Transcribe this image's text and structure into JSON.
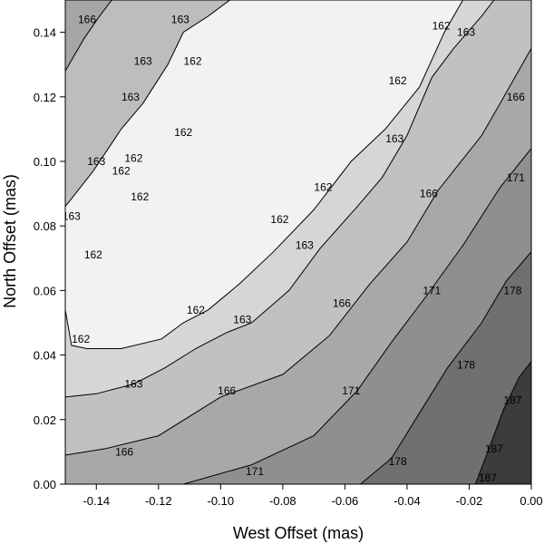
{
  "chart_data": {
    "type": "contour",
    "xlabel": "West Offset (mas)",
    "ylabel": "North Offset (mas)",
    "xlim": [
      -0.15,
      0.0
    ],
    "ylim": [
      0.0,
      0.15
    ],
    "xticks": [
      "-0.14",
      "-0.12",
      "-0.10",
      "-0.08",
      "-0.06",
      "-0.04",
      "-0.02",
      "0.00"
    ],
    "xtick_values": [
      -0.14,
      -0.12,
      -0.1,
      -0.08,
      -0.06,
      -0.04,
      -0.02,
      0.0
    ],
    "yticks": [
      "0.00",
      "0.02",
      "0.04",
      "0.06",
      "0.08",
      "0.10",
      "0.12",
      "0.14"
    ],
    "ytick_values": [
      0.0,
      0.02,
      0.04,
      0.06,
      0.08,
      0.1,
      0.12,
      0.14
    ],
    "levels": [
      162,
      163,
      166,
      171,
      178,
      187
    ],
    "fill_colors": [
      "#f2f2f2",
      "#d6d6d6",
      "#c1c1c1",
      "#a8a8a8",
      "#8f8f8f",
      "#707070",
      "#3c3c3c"
    ],
    "contours": [
      {
        "level": 162,
        "points": [
          [
            -0.15,
            0.054
          ],
          [
            -0.148,
            0.043
          ],
          [
            -0.143,
            0.042
          ],
          [
            -0.132,
            0.042
          ],
          [
            -0.119,
            0.045
          ],
          [
            -0.112,
            0.05
          ],
          [
            -0.104,
            0.054
          ],
          [
            -0.094,
            0.062
          ],
          [
            -0.083,
            0.072
          ],
          [
            -0.07,
            0.085
          ],
          [
            -0.058,
            0.1
          ],
          [
            -0.047,
            0.11
          ],
          [
            -0.036,
            0.123
          ],
          [
            -0.028,
            0.14
          ],
          [
            -0.022,
            0.15
          ]
        ]
      },
      {
        "level": 163,
        "points": [
          [
            -0.15,
            0.027
          ],
          [
            -0.14,
            0.028
          ],
          [
            -0.128,
            0.031
          ],
          [
            -0.118,
            0.036
          ],
          [
            -0.108,
            0.042
          ],
          [
            -0.098,
            0.047
          ],
          [
            -0.09,
            0.05
          ],
          [
            -0.078,
            0.06
          ],
          [
            -0.068,
            0.073
          ],
          [
            -0.056,
            0.086
          ],
          [
            -0.048,
            0.095
          ],
          [
            -0.04,
            0.108
          ],
          [
            -0.032,
            0.126
          ],
          [
            -0.025,
            0.135
          ],
          [
            -0.016,
            0.145
          ],
          [
            -0.012,
            0.15
          ]
        ]
      },
      {
        "level": 166,
        "points": [
          [
            -0.15,
            0.009
          ],
          [
            -0.137,
            0.011
          ],
          [
            -0.12,
            0.015
          ],
          [
            -0.1,
            0.027
          ],
          [
            -0.08,
            0.034
          ],
          [
            -0.065,
            0.046
          ],
          [
            -0.052,
            0.062
          ],
          [
            -0.04,
            0.075
          ],
          [
            -0.03,
            0.091
          ],
          [
            -0.016,
            0.108
          ],
          [
            -0.01,
            0.118
          ],
          [
            0.0,
            0.135
          ]
        ]
      },
      {
        "level": 171,
        "points": [
          [
            -0.112,
            0.0
          ],
          [
            -0.09,
            0.006
          ],
          [
            -0.07,
            0.015
          ],
          [
            -0.056,
            0.029
          ],
          [
            -0.045,
            0.044
          ],
          [
            -0.034,
            0.058
          ],
          [
            -0.022,
            0.074
          ],
          [
            -0.01,
            0.092
          ],
          [
            0.0,
            0.104
          ]
        ]
      },
      {
        "level": 178,
        "points": [
          [
            -0.055,
            0.0
          ],
          [
            -0.045,
            0.008
          ],
          [
            -0.036,
            0.022
          ],
          [
            -0.027,
            0.036
          ],
          [
            -0.016,
            0.05
          ],
          [
            -0.008,
            0.063
          ],
          [
            0.0,
            0.072
          ]
        ]
      },
      {
        "level": 187,
        "points": [
          [
            -0.018,
            0.0
          ],
          [
            -0.014,
            0.01
          ],
          [
            -0.009,
            0.023
          ],
          [
            -0.004,
            0.033
          ],
          [
            0.0,
            0.038
          ]
        ]
      }
    ],
    "upper_contours": [
      {
        "level": 163,
        "points": [
          [
            -0.15,
            0.086
          ],
          [
            -0.141,
            0.097
          ],
          [
            -0.132,
            0.11
          ],
          [
            -0.125,
            0.118
          ],
          [
            -0.117,
            0.13
          ],
          [
            -0.112,
            0.14
          ],
          [
            -0.104,
            0.145
          ],
          [
            -0.097,
            0.15
          ]
        ]
      },
      {
        "level": 166,
        "points": [
          [
            -0.15,
            0.128
          ],
          [
            -0.144,
            0.138
          ],
          [
            -0.139,
            0.145
          ],
          [
            -0.135,
            0.15
          ]
        ]
      }
    ],
    "upper_fill_color": "#bdbdbd",
    "upper_fill_color_2": "#a6a6a6",
    "contour_labels": [
      {
        "text": "166",
        "x": -0.143,
        "y": 0.144
      },
      {
        "text": "163",
        "x": -0.113,
        "y": 0.144
      },
      {
        "text": "163",
        "x": -0.125,
        "y": 0.131
      },
      {
        "text": "162",
        "x": -0.109,
        "y": 0.131
      },
      {
        "text": "163",
        "x": -0.129,
        "y": 0.12
      },
      {
        "text": "162",
        "x": -0.112,
        "y": 0.109
      },
      {
        "text": "163",
        "x": -0.14,
        "y": 0.1
      },
      {
        "text": "162",
        "x": -0.128,
        "y": 0.101
      },
      {
        "text": "162",
        "x": -0.132,
        "y": 0.097
      },
      {
        "text": "162",
        "x": -0.126,
        "y": 0.089
      },
      {
        "text": "163",
        "x": -0.148,
        "y": 0.083
      },
      {
        "text": "162",
        "x": -0.141,
        "y": 0.071
      },
      {
        "text": "162",
        "x": -0.081,
        "y": 0.082
      },
      {
        "text": "162",
        "x": -0.067,
        "y": 0.092
      },
      {
        "text": "162",
        "x": -0.043,
        "y": 0.125
      },
      {
        "text": "162",
        "x": -0.029,
        "y": 0.142
      },
      {
        "text": "163",
        "x": -0.021,
        "y": 0.14
      },
      {
        "text": "163",
        "x": -0.044,
        "y": 0.107
      },
      {
        "text": "163",
        "x": -0.073,
        "y": 0.074
      },
      {
        "text": "166",
        "x": -0.005,
        "y": 0.12
      },
      {
        "text": "166",
        "x": -0.033,
        "y": 0.09
      },
      {
        "text": "171",
        "x": -0.005,
        "y": 0.095
      },
      {
        "text": "166",
        "x": -0.061,
        "y": 0.056
      },
      {
        "text": "171",
        "x": -0.032,
        "y": 0.06
      },
      {
        "text": "178",
        "x": -0.006,
        "y": 0.06
      },
      {
        "text": "162",
        "x": -0.108,
        "y": 0.054
      },
      {
        "text": "163",
        "x": -0.093,
        "y": 0.051
      },
      {
        "text": "162",
        "x": -0.145,
        "y": 0.045
      },
      {
        "text": "163",
        "x": -0.128,
        "y": 0.031
      },
      {
        "text": "166",
        "x": -0.098,
        "y": 0.029
      },
      {
        "text": "171",
        "x": -0.058,
        "y": 0.029
      },
      {
        "text": "178",
        "x": -0.021,
        "y": 0.037
      },
      {
        "text": "187",
        "x": -0.006,
        "y": 0.026
      },
      {
        "text": "166",
        "x": -0.131,
        "y": 0.01
      },
      {
        "text": "171",
        "x": -0.089,
        "y": 0.004
      },
      {
        "text": "178",
        "x": -0.043,
        "y": 0.007
      },
      {
        "text": "187",
        "x": -0.012,
        "y": 0.011
      },
      {
        "text": "187",
        "x": -0.014,
        "y": 0.002
      }
    ]
  }
}
